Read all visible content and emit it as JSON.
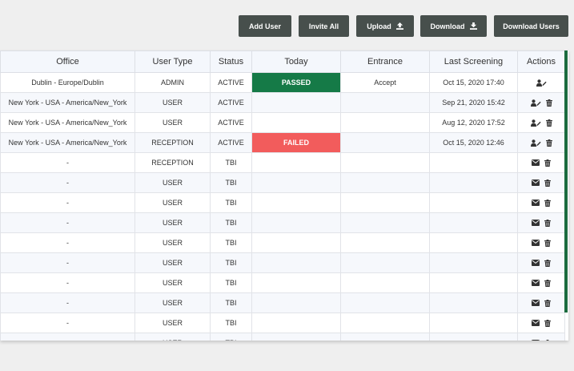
{
  "toolbar": {
    "add_user": "Add User",
    "invite_all": "Invite All",
    "upload": "Upload",
    "download": "Download",
    "download_users": "Download Users"
  },
  "table": {
    "headers": [
      "Office",
      "User Type",
      "Status",
      "Today",
      "Entrance",
      "Last Screening",
      "Actions"
    ],
    "rows": [
      {
        "office": "Dublin - Europe/Dublin",
        "type": "ADMIN",
        "status": "ACTIVE",
        "today": "PASSED",
        "entrance": "Accept",
        "last": "Oct 15, 2020 17:40",
        "actions": [
          "edit-user-icon"
        ]
      },
      {
        "office": "New York - USA - America/New_York",
        "type": "USER",
        "status": "ACTIVE",
        "today": "",
        "entrance": "",
        "last": "Sep 21, 2020 15:42",
        "actions": [
          "edit-user-icon",
          "trash-icon"
        ]
      },
      {
        "office": "New York - USA - America/New_York",
        "type": "USER",
        "status": "ACTIVE",
        "today": "",
        "entrance": "",
        "last": "Aug 12, 2020 17:52",
        "actions": [
          "edit-user-icon",
          "trash-icon"
        ]
      },
      {
        "office": "New York - USA - America/New_York",
        "type": "RECEPTION",
        "status": "ACTIVE",
        "today": "FAILED",
        "entrance": "",
        "last": "Oct 15, 2020 12:46",
        "actions": [
          "edit-user-icon",
          "trash-icon"
        ]
      },
      {
        "office": "-",
        "type": "RECEPTION",
        "status": "TBI",
        "today": "",
        "entrance": "",
        "last": "",
        "actions": [
          "envelope-icon",
          "trash-icon"
        ]
      },
      {
        "office": "-",
        "type": "USER",
        "status": "TBI",
        "today": "",
        "entrance": "",
        "last": "",
        "actions": [
          "envelope-icon",
          "trash-icon"
        ]
      },
      {
        "office": "-",
        "type": "USER",
        "status": "TBI",
        "today": "",
        "entrance": "",
        "last": "",
        "actions": [
          "envelope-icon",
          "trash-icon"
        ]
      },
      {
        "office": "-",
        "type": "USER",
        "status": "TBI",
        "today": "",
        "entrance": "",
        "last": "",
        "actions": [
          "envelope-icon",
          "trash-icon"
        ]
      },
      {
        "office": "-",
        "type": "USER",
        "status": "TBI",
        "today": "",
        "entrance": "",
        "last": "",
        "actions": [
          "envelope-icon",
          "trash-icon"
        ]
      },
      {
        "office": "-",
        "type": "USER",
        "status": "TBI",
        "today": "",
        "entrance": "",
        "last": "",
        "actions": [
          "envelope-icon",
          "trash-icon"
        ]
      },
      {
        "office": "-",
        "type": "USER",
        "status": "TBI",
        "today": "",
        "entrance": "",
        "last": "",
        "actions": [
          "envelope-icon",
          "trash-icon"
        ]
      },
      {
        "office": "-",
        "type": "USER",
        "status": "TBI",
        "today": "",
        "entrance": "",
        "last": "",
        "actions": [
          "envelope-icon",
          "trash-icon"
        ]
      },
      {
        "office": "-",
        "type": "USER",
        "status": "TBI",
        "today": "",
        "entrance": "",
        "last": "",
        "actions": [
          "envelope-icon",
          "trash-icon"
        ]
      },
      {
        "office": "-",
        "type": "USER",
        "status": "TBI",
        "today": "",
        "entrance": "",
        "last": "",
        "actions": [
          "envelope-icon",
          "trash-icon"
        ]
      }
    ]
  },
  "colors": {
    "button_bg": "#474f4c",
    "passed": "#157a47",
    "failed": "#f25c5c",
    "accent": "#1b6b3e"
  }
}
